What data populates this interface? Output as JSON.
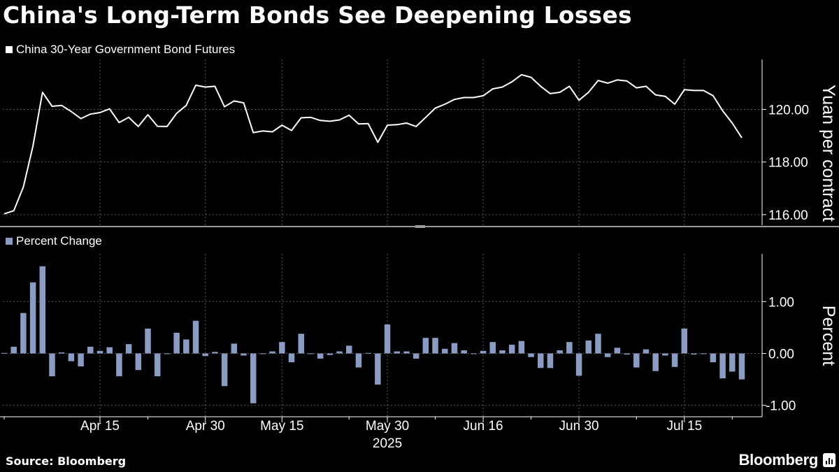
{
  "title": "China's Long-Term Bonds See Deepening Losses",
  "source": "Source: Bloomberg",
  "brand": "Bloomberg",
  "colors": {
    "background": "#000000",
    "line": "#ffffff",
    "bars": "#8a9cc4",
    "grid": "#5a5a5a"
  },
  "chart_data": [
    {
      "type": "line",
      "legend": "China 30-Year Government Bond Futures",
      "ylabel": "Yuan per contract",
      "ylim": [
        115.6,
        121.9
      ],
      "yticks": [
        "116.00",
        "118.00",
        "120.00"
      ],
      "ytick_values": [
        116,
        118,
        120
      ],
      "grid": true,
      "series": [
        {
          "values": [
            116.03,
            116.15,
            117.05,
            118.6,
            120.65,
            120.12,
            120.15,
            119.92,
            119.65,
            119.82,
            119.88,
            120.02,
            119.5,
            119.7,
            119.35,
            119.8,
            119.36,
            119.35,
            119.85,
            120.15,
            120.92,
            120.85,
            120.88,
            120.1,
            120.32,
            120.25,
            119.12,
            119.18,
            119.15,
            119.4,
            119.2,
            119.68,
            119.7,
            119.58,
            119.55,
            119.6,
            119.78,
            119.45,
            119.46,
            118.75,
            119.4,
            119.42,
            119.48,
            119.35,
            119.7,
            120.05,
            120.2,
            120.38,
            120.45,
            120.45,
            120.52,
            120.78,
            120.85,
            121.05,
            121.32,
            121.22,
            120.88,
            120.6,
            120.65,
            120.88,
            120.35,
            120.65,
            121.1,
            121.0,
            121.12,
            121.08,
            120.82,
            120.88,
            120.55,
            120.5,
            120.2,
            120.75,
            120.72,
            120.72,
            120.52,
            119.95,
            119.48,
            118.92
          ]
        }
      ]
    },
    {
      "type": "bar",
      "legend": "Percent Change",
      "ylabel": "Percent",
      "ylim": [
        -1.22,
        1.92
      ],
      "yticks": [
        "-1.00",
        "0.00",
        "1.00"
      ],
      "ytick_values": [
        -1,
        0,
        1
      ],
      "grid": true,
      "series": [
        {
          "values": [
            0.01,
            0.13,
            0.78,
            1.37,
            1.68,
            -0.44,
            0.02,
            -0.15,
            -0.25,
            0.13,
            0.05,
            0.12,
            -0.44,
            0.18,
            -0.32,
            0.48,
            -0.44,
            0.0,
            0.4,
            0.27,
            0.63,
            -0.05,
            0.03,
            -0.63,
            0.19,
            -0.04,
            -0.96,
            0.0,
            0.04,
            0.22,
            -0.17,
            0.38,
            0.0,
            -0.1,
            -0.03,
            0.04,
            0.15,
            -0.27,
            0.01,
            -0.6,
            0.56,
            0.04,
            0.04,
            -0.1,
            0.3,
            0.3,
            0.09,
            0.2,
            0.06,
            0.0,
            0.05,
            0.22,
            0.06,
            0.17,
            0.24,
            -0.07,
            -0.28,
            -0.28,
            0.06,
            0.22,
            -0.43,
            0.25,
            0.38,
            -0.07,
            0.11,
            -0.02,
            -0.27,
            0.08,
            -0.34,
            -0.04,
            -0.26,
            0.48,
            -0.02,
            0.0,
            -0.17,
            -0.48,
            -0.35,
            -0.5
          ]
        }
      ]
    }
  ],
  "x_axis": {
    "ticks": [
      {
        "index": 10,
        "label": "Apr 15"
      },
      {
        "index": 21,
        "label": "Apr 30"
      },
      {
        "index": 29,
        "label": "May 15"
      },
      {
        "index": 40,
        "label": "May 30"
      },
      {
        "index": 50,
        "label": "Jun 16"
      },
      {
        "index": 60,
        "label": "Jun 30"
      },
      {
        "index": 71,
        "label": "Jul 15"
      }
    ],
    "minor_ticks": [
      0,
      15,
      36,
      45,
      55,
      66,
      76
    ],
    "year_label": "2025"
  }
}
